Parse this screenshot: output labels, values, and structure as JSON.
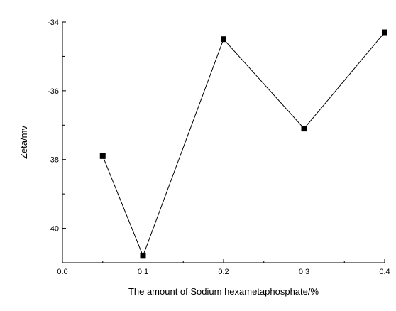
{
  "chart_data": {
    "type": "line",
    "title": "",
    "xlabel": "The amount of Sodium hexametaphosphate/%",
    "ylabel": "Zeta/mv",
    "xlim": [
      0.0,
      0.4
    ],
    "ylim": [
      -41,
      -34
    ],
    "x_major_ticks": [
      0.0,
      0.1,
      0.2,
      0.3,
      0.4
    ],
    "x_tick_labels": [
      "0.0",
      "0.1",
      "0.2",
      "0.3",
      "0.4"
    ],
    "y_major_ticks": [
      -40,
      -38,
      -36,
      -34
    ],
    "y_tick_labels": [
      "-40",
      "-38",
      "-36",
      "-34"
    ],
    "grid": false,
    "legend": "none",
    "marker": "square",
    "line_color": "#000000",
    "series": [
      {
        "x": [
          0.05,
          0.1,
          0.2,
          0.3,
          0.4
        ],
        "values": [
          -37.9,
          -40.8,
          -34.5,
          -37.1,
          -34.3
        ]
      }
    ]
  }
}
